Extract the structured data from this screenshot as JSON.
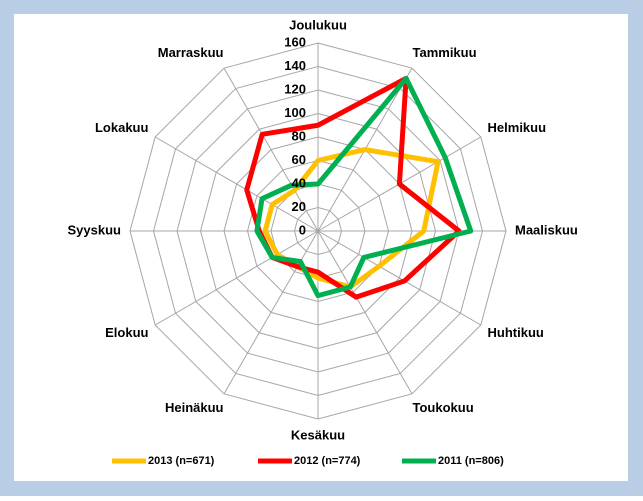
{
  "chart_data": {
    "type": "radar",
    "categories": [
      "Joulukuu",
      "Tammikuu",
      "Helmikuu",
      "Maaliskuu",
      "Huhtikuu",
      "Toukokuu",
      "Kesäkuu",
      "Heinäkuu",
      "Elokuu",
      "Syyskuu",
      "Lokakuu",
      "Marraskuu"
    ],
    "series": [
      {
        "name": "2013 (n=671)",
        "color": "#ffc000",
        "values": [
          60,
          80,
          118,
          90,
          60,
          55,
          40,
          35,
          40,
          45,
          45,
          40
        ]
      },
      {
        "name": "2012 (n=774)",
        "color": "#ff0000",
        "values": [
          90,
          150,
          80,
          120,
          85,
          65,
          35,
          35,
          45,
          50,
          70,
          95
        ]
      },
      {
        "name": "2011 (n=806)",
        "color": "#00b050",
        "values": [
          40,
          150,
          125,
          130,
          45,
          55,
          55,
          30,
          45,
          52,
          55,
          45
        ]
      }
    ],
    "ylim": [
      0,
      160
    ],
    "yticks": [
      0,
      20,
      40,
      60,
      80,
      100,
      120,
      140,
      160
    ],
    "grid": true
  }
}
